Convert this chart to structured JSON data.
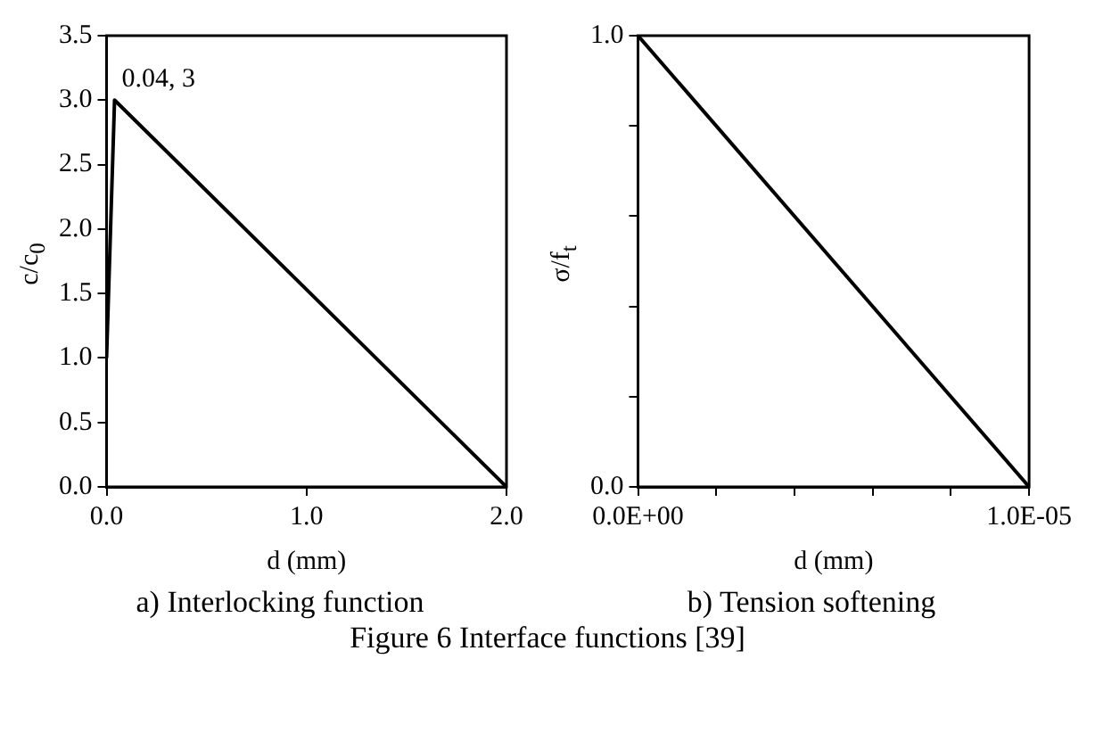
{
  "chart_data": [
    {
      "type": "line",
      "title": "a) Interlocking function",
      "xlabel": "d (mm)",
      "ylabel": "c/c$_{0}$",
      "x": [
        0,
        0.04,
        2
      ],
      "series": [
        {
          "color": "#000000",
          "values": [
            1,
            3,
            0
          ]
        }
      ],
      "xlim": [
        0,
        2
      ],
      "xticks": [
        {
          "value": 0,
          "label": "0.0"
        },
        {
          "value": 1,
          "label": "1.0"
        },
        {
          "value": 2,
          "label": "2.0"
        }
      ],
      "ylim": [
        0,
        3.5
      ],
      "yticks": [
        {
          "value": 0,
          "label": "0.0"
        },
        {
          "value": 0.5,
          "label": "0.5"
        },
        {
          "value": 1,
          "label": "1.0"
        },
        {
          "value": 1.5,
          "label": "1.5"
        },
        {
          "value": 2,
          "label": "2.0"
        },
        {
          "value": 2.5,
          "label": "2.5"
        },
        {
          "value": 3,
          "label": "3.0"
        },
        {
          "value": 3.5,
          "label": "3.5"
        }
      ],
      "annotations": [
        {
          "text": "0.04, 3",
          "x": 0.04,
          "y": 3
        }
      ],
      "grid": false,
      "legend": false,
      "marker": "none",
      "line_style": "solid"
    },
    {
      "type": "line",
      "title": "b) Tension softening",
      "xlabel": "d (mm)",
      "ylabel": "σ/f$_{t}$",
      "x": [
        0,
        1e-05
      ],
      "series": [
        {
          "color": "#000000",
          "values": [
            1,
            0
          ]
        }
      ],
      "xlim": [
        0,
        1e-05
      ],
      "xticks": [
        {
          "value": 0,
          "label": "0.0E+00"
        },
        {
          "value": 2e-06,
          "label": null
        },
        {
          "value": 4e-06,
          "label": null
        },
        {
          "value": 6e-06,
          "label": null
        },
        {
          "value": 8e-06,
          "label": null
        },
        {
          "value": 1e-05,
          "label": "1.0E-05"
        }
      ],
      "ylim": [
        0,
        1
      ],
      "yticks": [
        {
          "value": 0,
          "label": "0.0"
        },
        {
          "value": 0.2,
          "label": null
        },
        {
          "value": 0.4,
          "label": null
        },
        {
          "value": 0.6,
          "label": null
        },
        {
          "value": 0.8,
          "label": null
        },
        {
          "value": 1,
          "label": "1.0"
        }
      ],
      "annotations": [
        "Figure 6 Interface functions [39]"
      ],
      "grid": false,
      "legend": false,
      "marker": "none",
      "line_style": "solid"
    }
  ]
}
